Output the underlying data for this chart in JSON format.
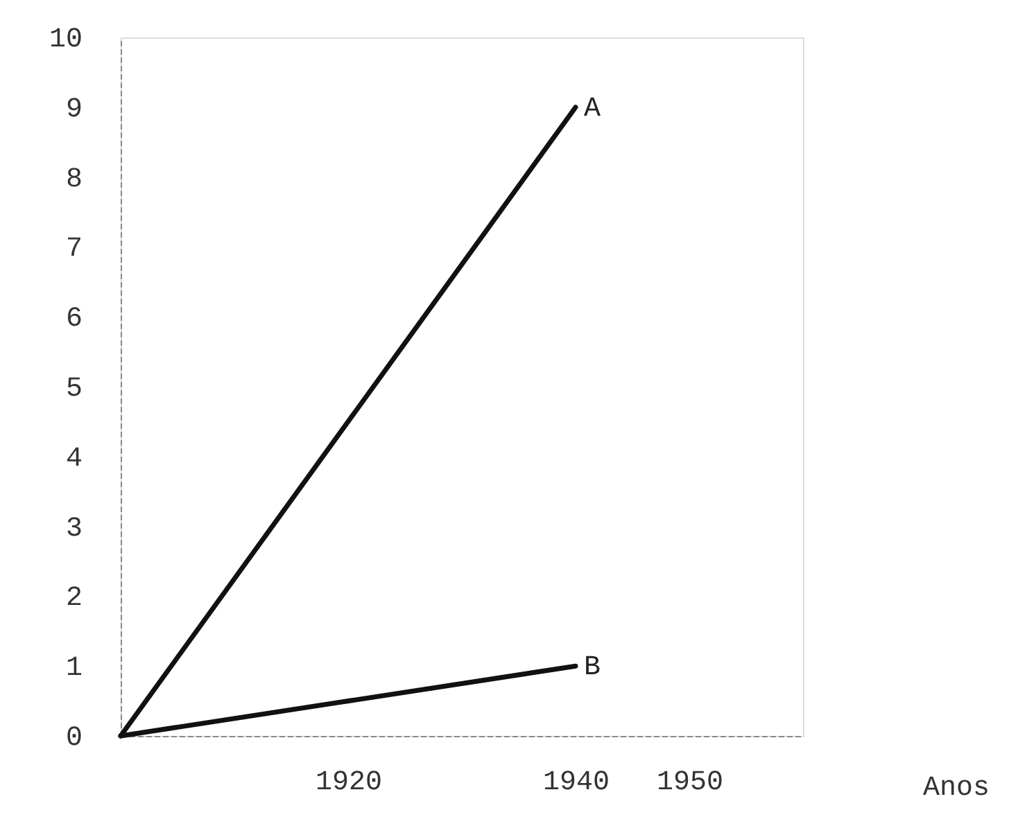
{
  "chart_data": {
    "type": "line",
    "xlabel": "Anos",
    "x": [
      1900,
      1940
    ],
    "series": [
      {
        "name": "A",
        "color": "#111111",
        "values": [
          0,
          9
        ]
      },
      {
        "name": "B",
        "color": "#111111",
        "values": [
          0,
          1
        ]
      }
    ],
    "xlim": [
      1900,
      1960
    ],
    "xticks": [
      1920,
      1940,
      1950
    ],
    "ylim": [
      0,
      10
    ],
    "yticks": [
      0,
      1,
      2,
      3,
      4,
      5,
      6,
      7,
      8,
      9,
      10
    ]
  }
}
